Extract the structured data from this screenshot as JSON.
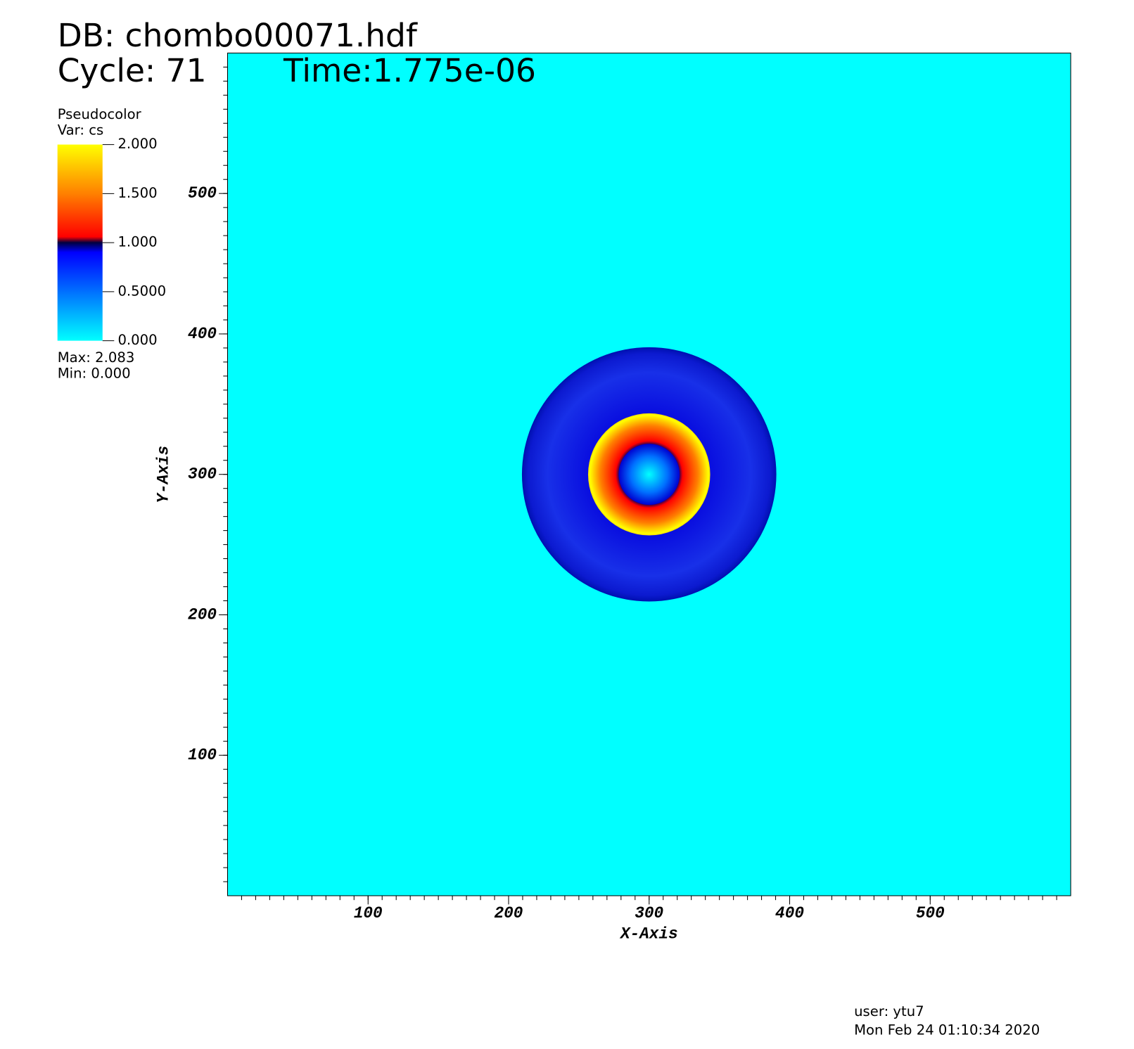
{
  "chart_data": {
    "type": "pseudocolor",
    "db_label": "DB: chombo00071.hdf",
    "cycle_label": "Cycle: 71",
    "time_label": "Time:1.775e-06",
    "legend_title": "Pseudocolor",
    "legend_var": "Var: cs",
    "legend_max": "Max:  2.083",
    "legend_min": "Min:  0.000",
    "colorbar_lim": [
      0,
      2
    ],
    "colorbar_ticks": [
      {
        "value": 2,
        "label": "2.000"
      },
      {
        "value": 1.5,
        "label": "1.500"
      },
      {
        "value": 1,
        "label": "1.000"
      },
      {
        "value": 0.5,
        "label": "0.5000"
      },
      {
        "value": 0,
        "label": "0.000"
      }
    ],
    "x_label": "X-Axis",
    "y_label": "Y-Axis",
    "xlim": [
      0,
      600
    ],
    "ylim": [
      0,
      600
    ],
    "xticks": [
      100,
      200,
      300,
      400,
      500
    ],
    "yticks": [
      100,
      200,
      300,
      400,
      500
    ],
    "user_label": "user: ytu7",
    "date_label": "Mon Feb 24 01:10:34 2020"
  }
}
